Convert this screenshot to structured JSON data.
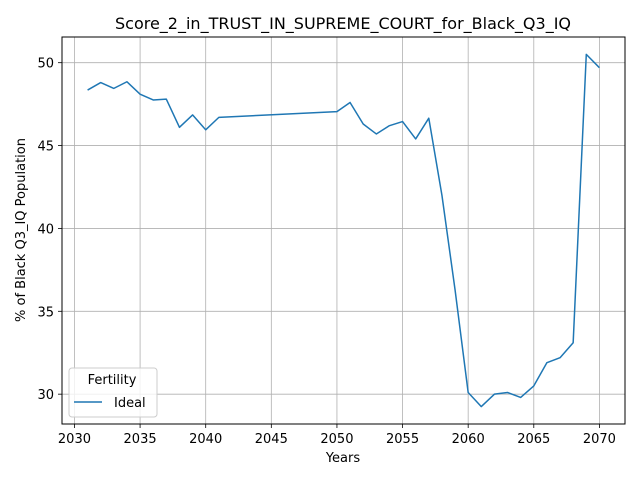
{
  "chart_data": {
    "type": "line",
    "title": "Score_2_in_TRUST_IN_SUPREME_COURT_for_Black_Q3_IQ",
    "xlabel": "Years",
    "ylabel": "% of Black Q3_IQ Population",
    "xlim": [
      2029.05,
      2071.95
    ],
    "ylim": [
      28.2,
      51.55
    ],
    "xticks": [
      2030,
      2035,
      2040,
      2045,
      2050,
      2055,
      2060,
      2065,
      2070
    ],
    "yticks": [
      30,
      35,
      40,
      45,
      50
    ],
    "grid": true,
    "legend": {
      "title": "Fertility",
      "placement": "lower-left"
    },
    "series": [
      {
        "name": "Ideal",
        "color": "#1f77b4",
        "x": [
          2031,
          2032,
          2033,
          2034,
          2035,
          2036,
          2037,
          2038,
          2039,
          2040,
          2041,
          2050,
          2051,
          2052,
          2053,
          2054,
          2055,
          2056,
          2057,
          2058,
          2059,
          2060,
          2061,
          2062,
          2063,
          2064,
          2065,
          2066,
          2067,
          2068,
          2069,
          2070
        ],
        "y": [
          48.35,
          48.8,
          48.45,
          48.85,
          48.1,
          47.75,
          47.8,
          46.1,
          46.85,
          45.95,
          46.7,
          47.05,
          47.6,
          46.3,
          45.7,
          46.2,
          46.45,
          45.4,
          46.65,
          42.0,
          36.3,
          30.1,
          29.25,
          30.0,
          30.1,
          29.8,
          30.5,
          31.9,
          32.2,
          33.1,
          50.5,
          49.7
        ]
      }
    ]
  }
}
